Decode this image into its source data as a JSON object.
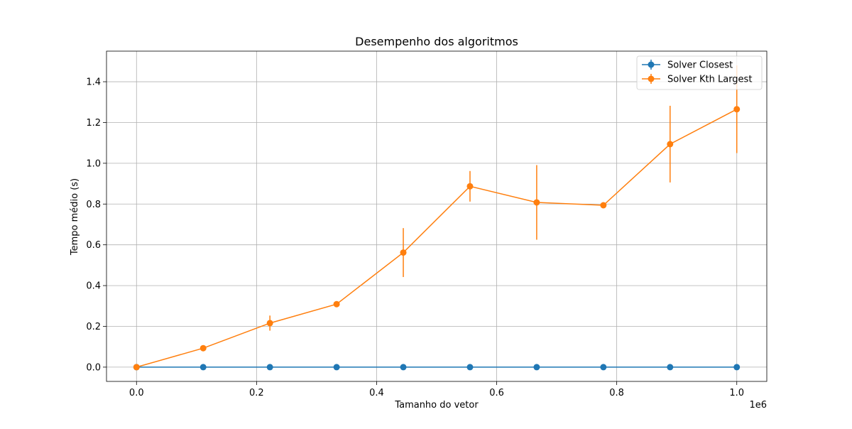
{
  "chart_data": {
    "type": "line",
    "title": "Desempenho dos algoritmos",
    "xlabel": "Tamanho do vetor",
    "ylabel": "Tempo médio (s)",
    "x_offset_label": "1e6",
    "x_scale": 1000000,
    "xlim": [
      -50000,
      1050000
    ],
    "ylim": [
      -0.07,
      1.55
    ],
    "grid": true,
    "legend_position": "top-right",
    "x_ticks": [
      0.0,
      0.2,
      0.4,
      0.6,
      0.8,
      1.0
    ],
    "x_tick_labels": [
      "0.0",
      "0.2",
      "0.4",
      "0.6",
      "0.8",
      "1.0"
    ],
    "y_ticks": [
      0.0,
      0.2,
      0.4,
      0.6,
      0.8,
      1.0,
      1.2,
      1.4
    ],
    "y_tick_labels": [
      "0.0",
      "0.2",
      "0.4",
      "0.6",
      "0.8",
      "1.0",
      "1.2",
      "1.4"
    ],
    "x": [
      1,
      111112,
      222223,
      333334,
      444445,
      555556,
      666667,
      777778,
      888889,
      1000000
    ],
    "series": [
      {
        "name": "Solver Closest",
        "color": "#1f77b4",
        "values": [
          0.0,
          0.0,
          0.0,
          0.0,
          0.0,
          0.0,
          0.0,
          0.0,
          0.0,
          0.0
        ],
        "errors": [
          0.0,
          0.0,
          0.0,
          0.0,
          0.0,
          0.0,
          0.0,
          0.0,
          0.0,
          0.0
        ]
      },
      {
        "name": "Solver Kth Largest",
        "color": "#ff7f0e",
        "values": [
          0.0,
          0.093,
          0.216,
          0.309,
          0.562,
          0.887,
          0.808,
          0.794,
          1.094,
          1.265
        ],
        "errors": [
          0.0,
          0.005,
          0.037,
          0.008,
          0.12,
          0.075,
          0.183,
          0.005,
          0.188,
          0.215
        ]
      }
    ]
  }
}
